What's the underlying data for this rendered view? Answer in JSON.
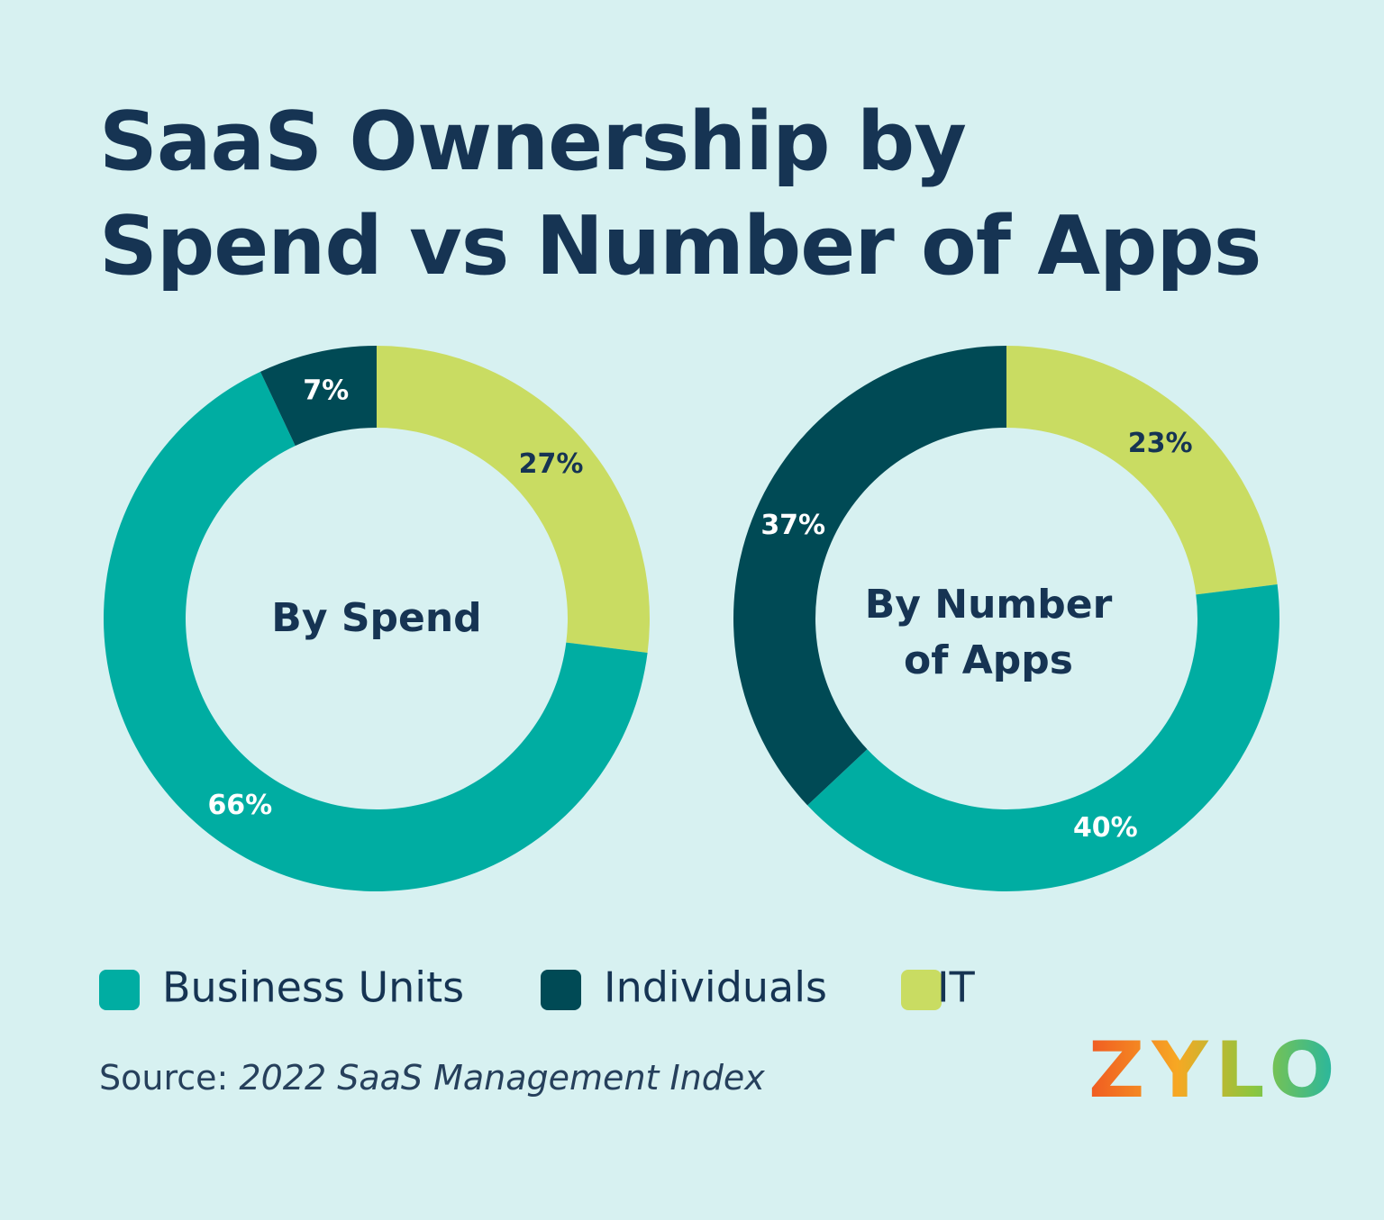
{
  "title": "SaaS Ownership by Spend vs Number of Apps",
  "chart_data": [
    {
      "type": "pie",
      "title": "By Spend",
      "categories": [
        "Business Units",
        "Individuals",
        "IT"
      ],
      "values": [
        66,
        7,
        27
      ],
      "value_labels": [
        "66%",
        "7%",
        "27%"
      ],
      "colors": [
        "#00ada2",
        "#004a55",
        "#c9dc62"
      ]
    },
    {
      "type": "pie",
      "title": "By Number of Apps",
      "categories": [
        "Business Units",
        "Individuals",
        "IT"
      ],
      "values": [
        40,
        37,
        23
      ],
      "value_labels": [
        "40%",
        "37%",
        "23%"
      ],
      "colors": [
        "#00ada2",
        "#004a55",
        "#c9dc62"
      ]
    }
  ],
  "source_label": "Source:",
  "source_title": "2022 SaaS Management Index",
  "logo": "ZYLO"
}
